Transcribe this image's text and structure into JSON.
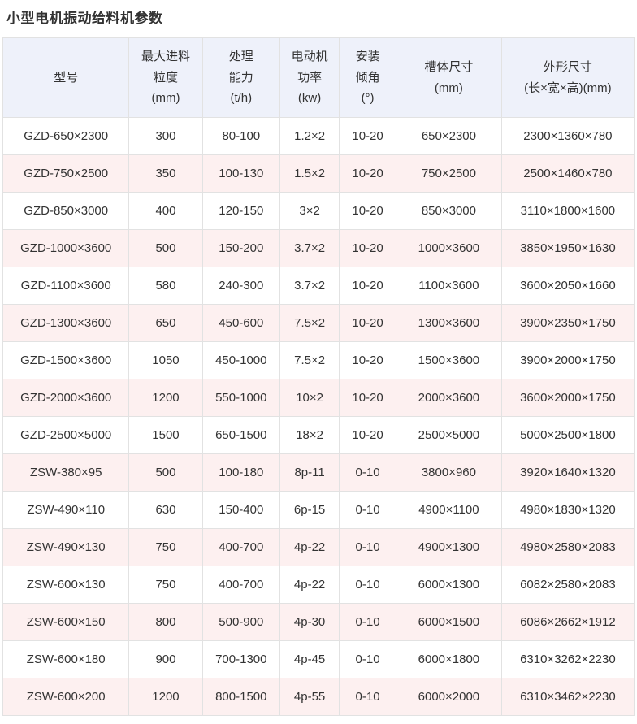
{
  "page": {
    "title": "小型电机振动给料机参数"
  },
  "colors": {
    "header_bg": "#eef1fa",
    "row_stripe_bg": "#fdf0f0",
    "row_bg": "#ffffff",
    "border": "#e2e2e2",
    "text": "#333333"
  },
  "table": {
    "columns": [
      {
        "label": "型号"
      },
      {
        "label": "最大进料\n粒度\n(mm)"
      },
      {
        "label": "处理\n能力\n(t/h)"
      },
      {
        "label": "电动机\n功率\n(kw)"
      },
      {
        "label": "安装\n倾角\n(°)"
      },
      {
        "label": "槽体尺寸\n(mm)"
      },
      {
        "label": "外形尺寸\n(长×宽×高)(mm)"
      }
    ],
    "rows": [
      [
        "GZD-650×2300",
        "300",
        "80-100",
        "1.2×2",
        "10-20",
        "650×2300",
        "2300×1360×780"
      ],
      [
        "GZD-750×2500",
        "350",
        "100-130",
        "1.5×2",
        "10-20",
        "750×2500",
        "2500×1460×780"
      ],
      [
        "GZD-850×3000",
        "400",
        "120-150",
        "3×2",
        "10-20",
        "850×3000",
        "3110×1800×1600"
      ],
      [
        "GZD-1000×3600",
        "500",
        "150-200",
        "3.7×2",
        "10-20",
        "1000×3600",
        "3850×1950×1630"
      ],
      [
        "GZD-1100×3600",
        "580",
        "240-300",
        "3.7×2",
        "10-20",
        "1100×3600",
        "3600×2050×1660"
      ],
      [
        "GZD-1300×3600",
        "650",
        "450-600",
        "7.5×2",
        "10-20",
        "1300×3600",
        "3900×2350×1750"
      ],
      [
        "GZD-1500×3600",
        "1050",
        "450-1000",
        "7.5×2",
        "10-20",
        "1500×3600",
        "3900×2000×1750"
      ],
      [
        "GZD-2000×3600",
        "1200",
        "550-1000",
        "10×2",
        "10-20",
        "2000×3600",
        "3600×2000×1750"
      ],
      [
        "GZD-2500×5000",
        "1500",
        "650-1500",
        "18×2",
        "10-20",
        "2500×5000",
        "5000×2500×1800"
      ],
      [
        "ZSW-380×95",
        "500",
        "100-180",
        "8p-11",
        "0-10",
        "3800×960",
        "3920×1640×1320"
      ],
      [
        "ZSW-490×110",
        "630",
        "150-400",
        "6p-15",
        "0-10",
        "4900×1100",
        "4980×1830×1320"
      ],
      [
        "ZSW-490×130",
        "750",
        "400-700",
        "4p-22",
        "0-10",
        "4900×1300",
        "4980×2580×2083"
      ],
      [
        "ZSW-600×130",
        "750",
        "400-700",
        "4p-22",
        "0-10",
        "6000×1300",
        "6082×2580×2083"
      ],
      [
        "ZSW-600×150",
        "800",
        "500-900",
        "4p-30",
        "0-10",
        "6000×1500",
        "6086×2662×1912"
      ],
      [
        "ZSW-600×180",
        "900",
        "700-1300",
        "4p-45",
        "0-10",
        "6000×1800",
        "6310×3262×2230"
      ],
      [
        "ZSW-600×200",
        "1200",
        "800-1500",
        "4p-55",
        "0-10",
        "6000×2000",
        "6310×3462×2230"
      ]
    ]
  }
}
